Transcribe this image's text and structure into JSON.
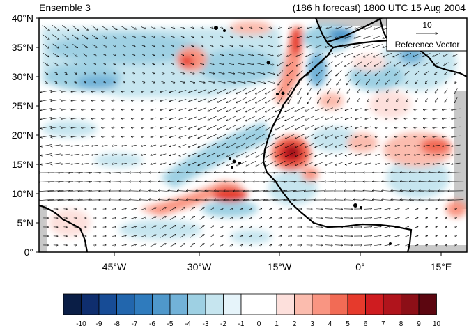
{
  "header": {
    "left_title": "Ensemble 3",
    "right_title": "(186 h forecast) 1800 UTC 15 Aug 2004"
  },
  "reference_vector": {
    "magnitude_label": "10",
    "caption": "Reference Vector"
  },
  "axes": {
    "y_ticks": [
      "40°N",
      "35°N",
      "30°N",
      "25°N",
      "20°N",
      "15°N",
      "10°N",
      "5°N",
      "0°"
    ],
    "x_ticks": [
      "45°W",
      "30°W",
      "15°W",
      "0°",
      "15°E"
    ]
  },
  "colorbar": {
    "labels": [
      "-10",
      "-9",
      "-8",
      "-7",
      "-6",
      "-5",
      "-4",
      "-3",
      "-2",
      "-1",
      "0",
      "1",
      "2",
      "3",
      "4",
      "5",
      "6",
      "7",
      "8",
      "9",
      "10"
    ],
    "colors": [
      "#0a1e46",
      "#0f2e6e",
      "#174c96",
      "#2266ad",
      "#2f7bbd",
      "#4f98cb",
      "#72b2d8",
      "#9ed0e3",
      "#c6e5ef",
      "#e6f4fa",
      "#ffffff",
      "#ffffff",
      "#fde0dc",
      "#fbbcae",
      "#f99582",
      "#f26b55",
      "#e63a2c",
      "#cf1c20",
      "#b0141c",
      "#8c0f17",
      "#5c0610"
    ]
  },
  "colors": {
    "land_mask": "#c8c8c8",
    "coast": "#000000",
    "vector": "#000000"
  }
}
